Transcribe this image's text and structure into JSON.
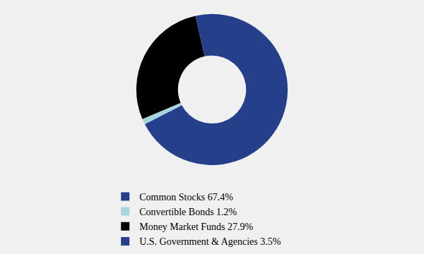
{
  "chart_data": {
    "type": "pie",
    "categories": [
      "Common Stocks 67.4%",
      "Convertible Bonds 1.2%",
      "Money Market Funds 27.9%",
      "U.S. Government & Agencies 3.5%"
    ],
    "values": [
      67.4,
      1.2,
      27.9,
      3.5
    ],
    "colors": [
      "#253f8b",
      "#a8d4dc",
      "#000000",
      "#253f8b"
    ],
    "legend": "bottom"
  }
}
